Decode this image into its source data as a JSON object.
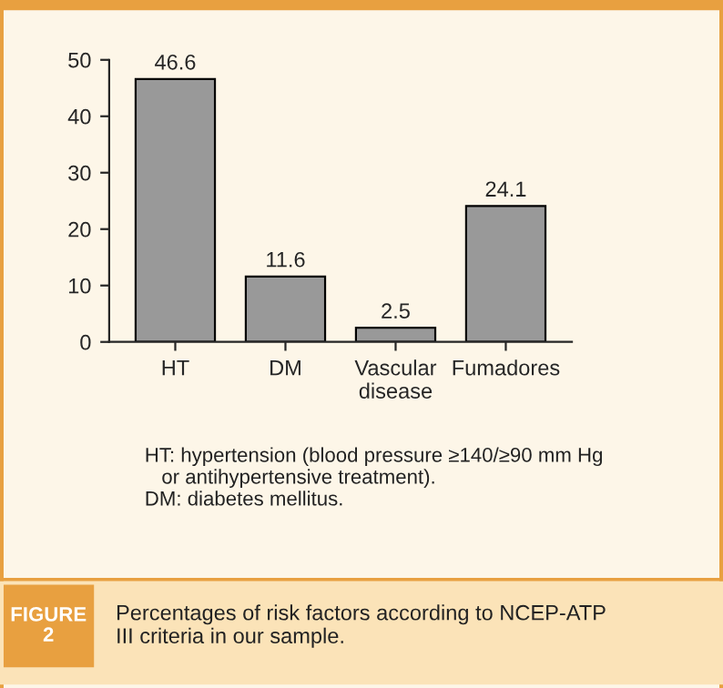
{
  "chart_data": {
    "type": "bar",
    "categories": [
      "HT",
      "DM",
      "Vascular\ndisease",
      "Fumadores"
    ],
    "values": [
      46.6,
      11.6,
      2.5,
      24.1
    ],
    "color": "#999999",
    "ylim": [
      0,
      50
    ],
    "yticks": [
      0,
      10,
      20,
      30,
      40,
      50
    ],
    "grid": false,
    "data_labels": true,
    "annotations": [
      "HT: hypertension (blood pressure ≥140/≥90 mm Hg\n   or antihypertensive treatment).\nDM: diabetes mellitus.",
      "FIGURE\n2",
      "Percentages of risk factors according to NCEP-ATP\nIII criteria in our sample."
    ]
  }
}
